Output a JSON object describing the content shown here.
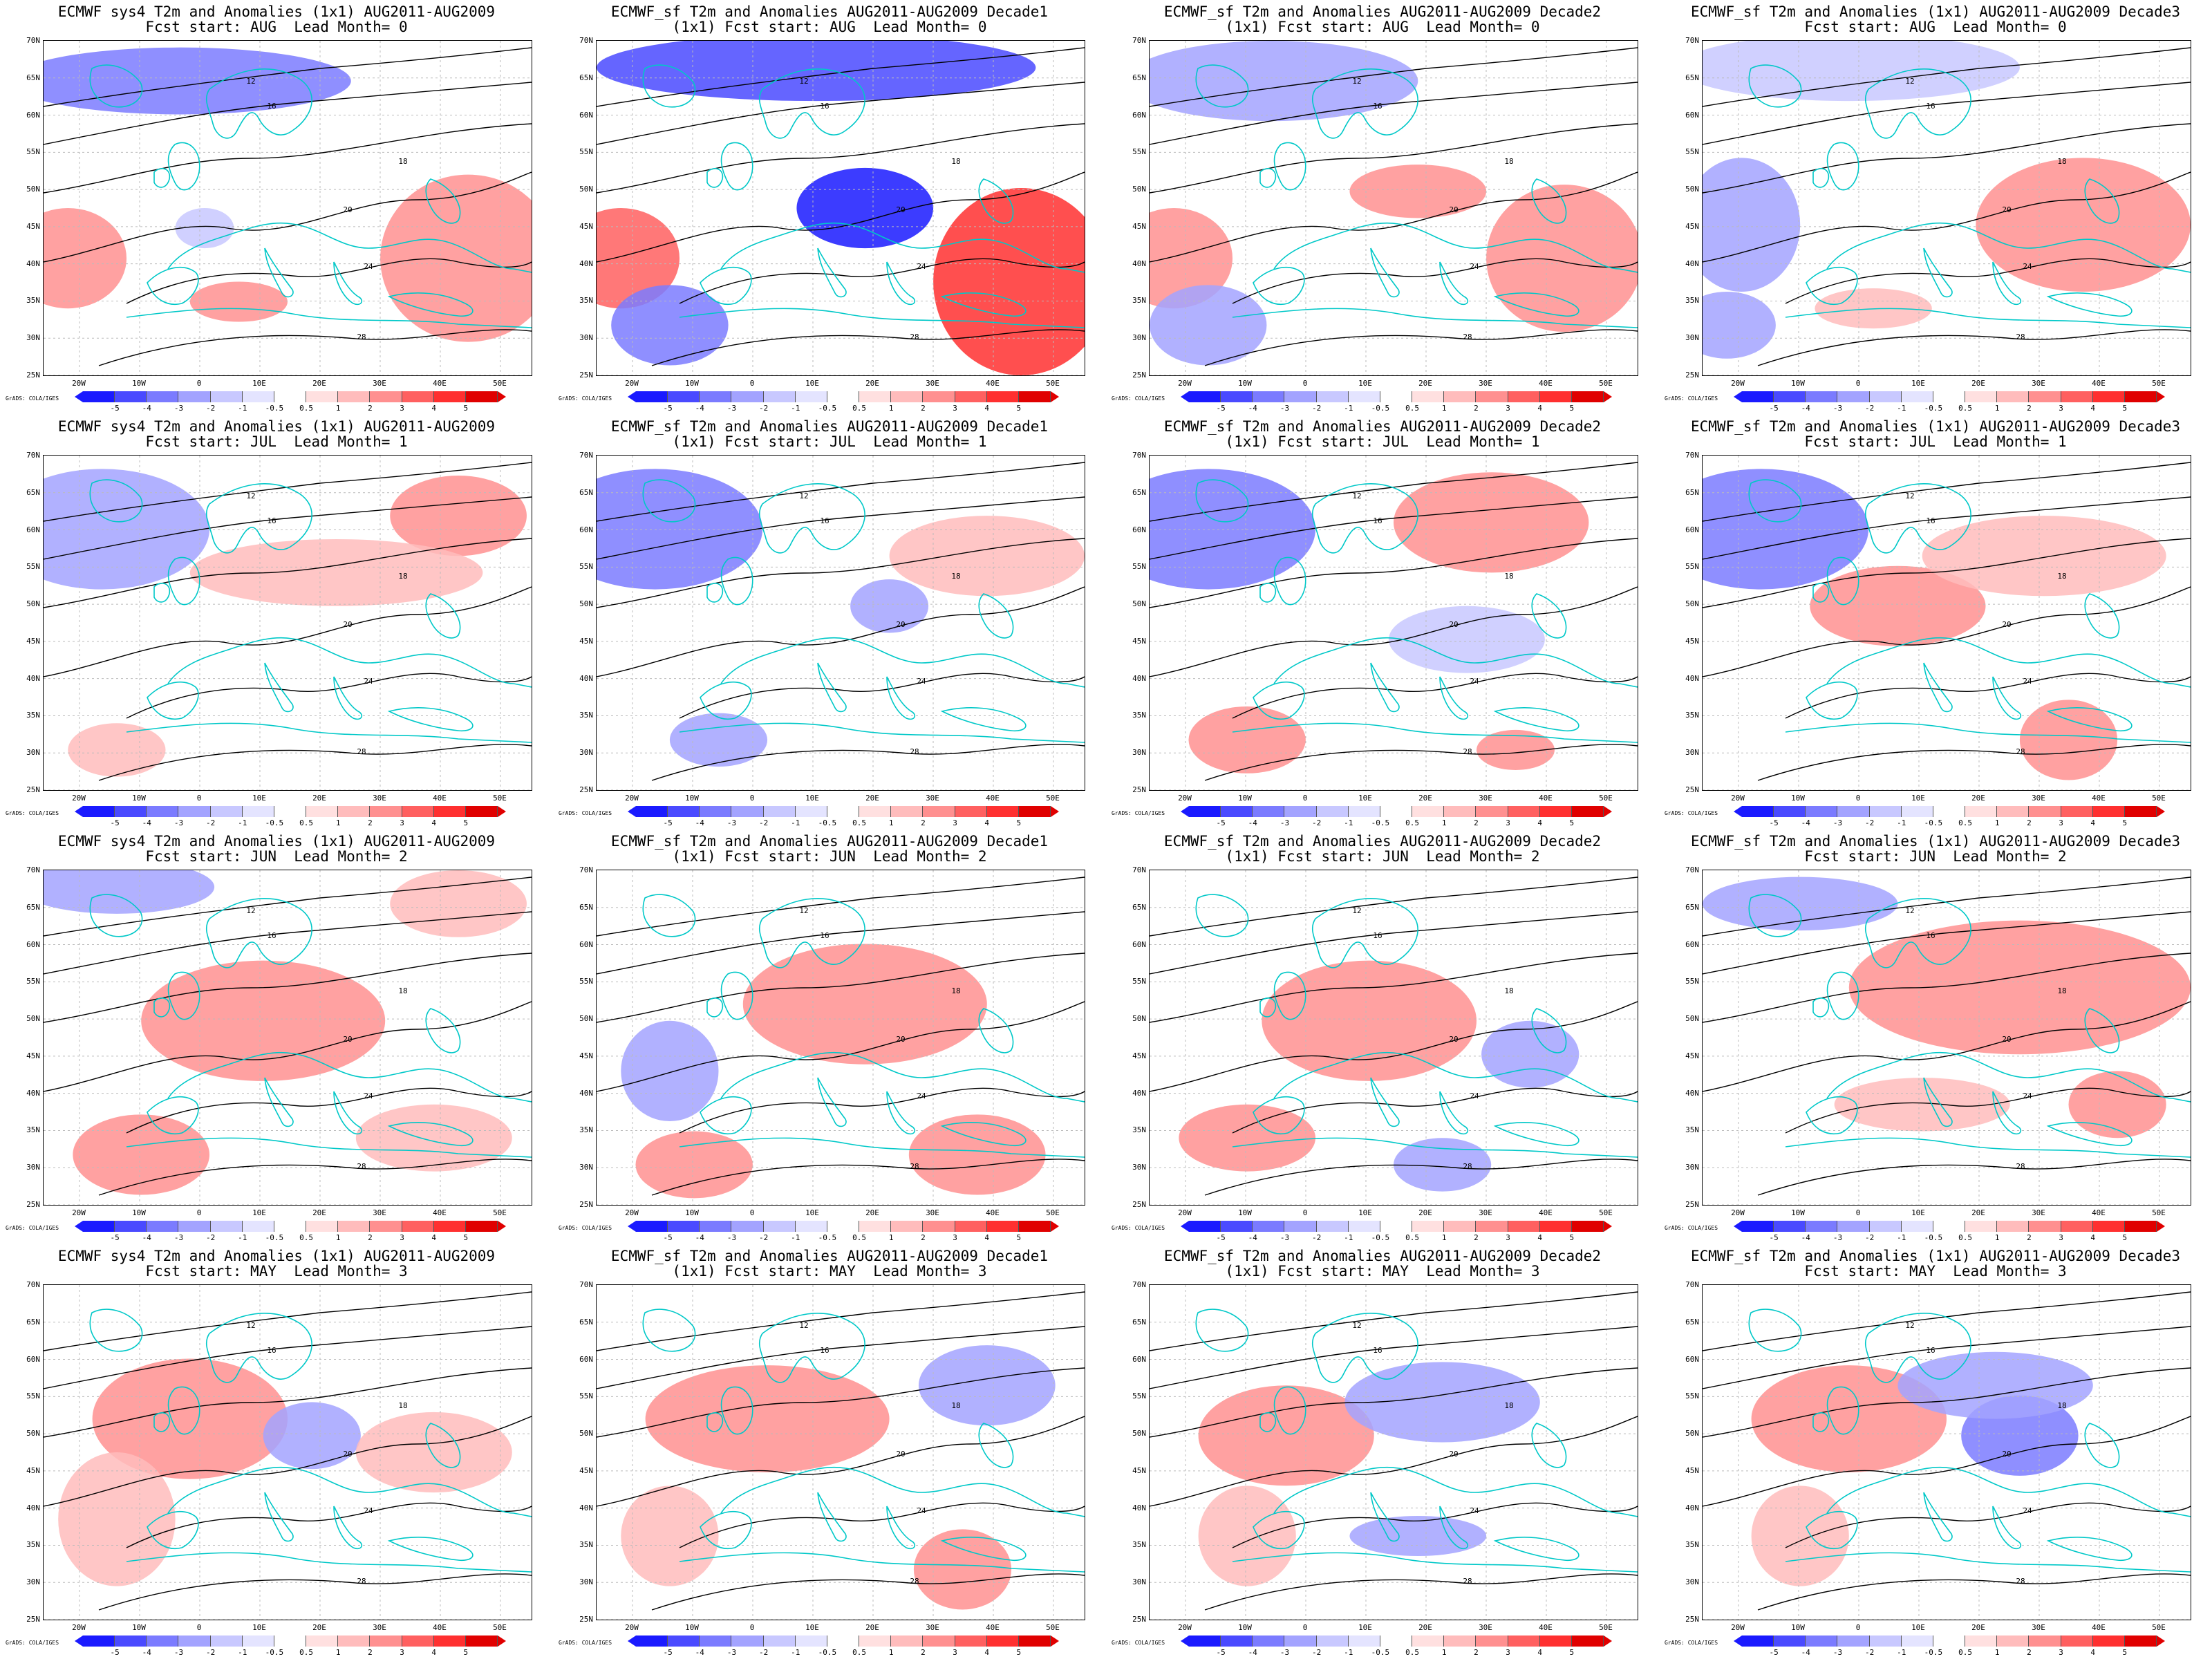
{
  "page": {
    "rows": 4,
    "cols": 4
  },
  "panels": [
    {
      "title": [
        "ECMWF sys4 T2m and Anomalies (1x1) AUG2011-AUG2009",
        "Fcst start: AUG  Lead Month= 0"
      ]
    },
    {
      "title": [
        "ECMWF_sf T2m and Anomalies AUG2011-AUG2009 Decade1",
        "(1x1) Fcst start: AUG  Lead Month= 0"
      ]
    },
    {
      "title": [
        "ECMWF_sf T2m and Anomalies AUG2011-AUG2009 Decade2",
        "(1x1) Fcst start: AUG  Lead Month= 0"
      ]
    },
    {
      "title": [
        "ECMWF_sf T2m and Anomalies (1x1) AUG2011-AUG2009 Decade3",
        "Fcst start: AUG  Lead Month= 0"
      ]
    },
    {
      "title": [
        "ECMWF sys4 T2m and Anomalies (1x1) AUG2011-AUG2009",
        "Fcst start: JUL  Lead Month= 1"
      ]
    },
    {
      "title": [
        "ECMWF_sf T2m and Anomalies AUG2011-AUG2009 Decade1",
        "(1x1) Fcst start: JUL  Lead Month= 1"
      ]
    },
    {
      "title": [
        "ECMWF_sf T2m and Anomalies AUG2011-AUG2009 Decade2",
        "(1x1) Fcst start: JUL  Lead Month= 1"
      ]
    },
    {
      "title": [
        "ECMWF_sf T2m and Anomalies (1x1) AUG2011-AUG2009 Decade3",
        "Fcst start: JUL  Lead Month= 1"
      ]
    },
    {
      "title": [
        "ECMWF sys4 T2m and Anomalies (1x1) AUG2011-AUG2009",
        "Fcst start: JUN  Lead Month= 2"
      ]
    },
    {
      "title": [
        "ECMWF_sf T2m and Anomalies AUG2011-AUG2009 Decade1",
        "(1x1) Fcst start: JUN  Lead Month= 2"
      ]
    },
    {
      "title": [
        "ECMWF_sf T2m and Anomalies AUG2011-AUG2009 Decade2",
        "(1x1) Fcst start: JUN  Lead Month= 2"
      ]
    },
    {
      "title": [
        "ECMWF_sf T2m and Anomalies (1x1) AUG2011-AUG2009 Decade3",
        "Fcst start: JUN  Lead Month= 2"
      ]
    },
    {
      "title": [
        "ECMWF sys4 T2m and Anomalies (1x1) AUG2011-AUG2009",
        "Fcst start: MAY  Lead Month= 3"
      ]
    },
    {
      "title": [
        "ECMWF_sf T2m and Anomalies AUG2011-AUG2009 Decade1",
        "(1x1) Fcst start: MAY  Lead Month= 3"
      ]
    },
    {
      "title": [
        "ECMWF_sf T2m and Anomalies AUG2011-AUG2009 Decade2",
        "(1x1) Fcst start: MAY  Lead Month= 3"
      ]
    },
    {
      "title": [
        "ECMWF_sf T2m and Anomalies (1x1) AUG2011-AUG2009 Decade3",
        "Fcst start: MAY  Lead Month= 3"
      ]
    }
  ],
  "lat_labels": [
    "70N",
    "65N",
    "60N",
    "55N",
    "50N",
    "45N",
    "40N",
    "35N",
    "30N",
    "25N"
  ],
  "lon_labels": [
    "20W",
    "10W",
    "0",
    "10E",
    "20E",
    "30E",
    "40E",
    "50E"
  ],
  "colorbar": {
    "labels": [
      "-5",
      "-4",
      "-3",
      "-2",
      "-1",
      "-0.5",
      "0.5",
      "1",
      "2",
      "3",
      "4",
      "5"
    ],
    "colors": [
      "#1a1aff",
      "#4a4aff",
      "#7b7bff",
      "#a3a3ff",
      "#c8c8ff",
      "#e4e4ff",
      "#ffffff",
      "#ffe0e0",
      "#ffbcbc",
      "#ff9090",
      "#ff6060",
      "#ff3030",
      "#e00000"
    ],
    "credit": "GrADS: COLA/IGES"
  },
  "contour_labels": [
    "12",
    "16",
    "18",
    "20",
    "24",
    "28"
  ],
  "colors": {
    "coast": "#00c8c8",
    "contour": "#000000",
    "grid": "#bbbbbb"
  }
}
